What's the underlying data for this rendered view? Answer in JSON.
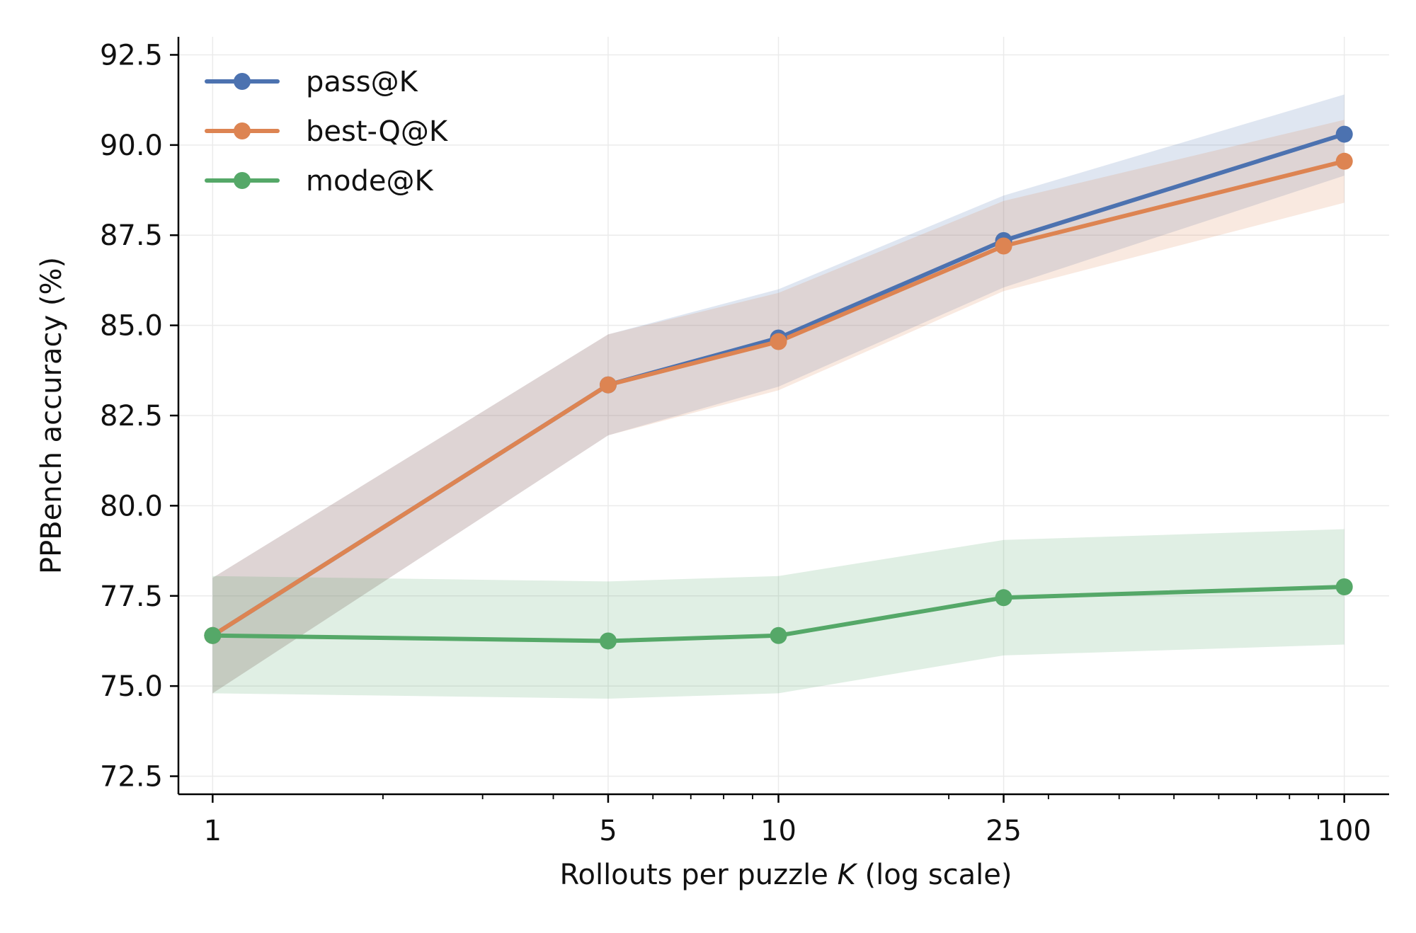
{
  "chart_data": {
    "type": "line",
    "xlabel_prefix": "Rollouts per puzzle ",
    "xlabel_var": "K",
    "xlabel_suffix": " (log scale)",
    "ylabel": "PPBench accuracy (%)",
    "x_scale": "log",
    "x": [
      1,
      5,
      10,
      25,
      100
    ],
    "x_tick_labels": [
      "1",
      "5",
      "10",
      "25",
      "100"
    ],
    "y_ticks": [
      72.5,
      75.0,
      77.5,
      80.0,
      82.5,
      85.0,
      87.5,
      90.0,
      92.5
    ],
    "y_tick_labels": [
      "72.5",
      "75.0",
      "77.5",
      "80.0",
      "82.5",
      "85.0",
      "87.5",
      "90.0",
      "92.5"
    ],
    "xlim": [
      0.87,
      120
    ],
    "ylim": [
      72.0,
      93.0
    ],
    "grid": true,
    "legend_position": "top-left",
    "series": [
      {
        "name": "pass@K",
        "color": "#4C72B0",
        "values": [
          76.4,
          83.35,
          84.65,
          87.35,
          90.3
        ],
        "band_lower": [
          74.8,
          81.95,
          83.3,
          86.05,
          89.15
        ],
        "band_upper": [
          78.0,
          84.75,
          86.0,
          88.6,
          91.4
        ]
      },
      {
        "name": "best-Q@K",
        "color": "#DD8452",
        "values": [
          76.4,
          83.35,
          84.55,
          87.2,
          89.55
        ],
        "band_lower": [
          74.8,
          81.95,
          83.2,
          85.95,
          88.4
        ],
        "band_upper": [
          78.0,
          84.75,
          85.9,
          88.45,
          90.7
        ]
      },
      {
        "name": "mode@K",
        "color": "#55A868",
        "values": [
          76.4,
          76.25,
          76.4,
          77.45,
          77.75
        ],
        "band_lower": [
          74.8,
          74.65,
          74.8,
          75.85,
          76.15
        ],
        "band_upper": [
          78.05,
          77.9,
          78.05,
          79.05,
          79.35
        ]
      }
    ]
  }
}
